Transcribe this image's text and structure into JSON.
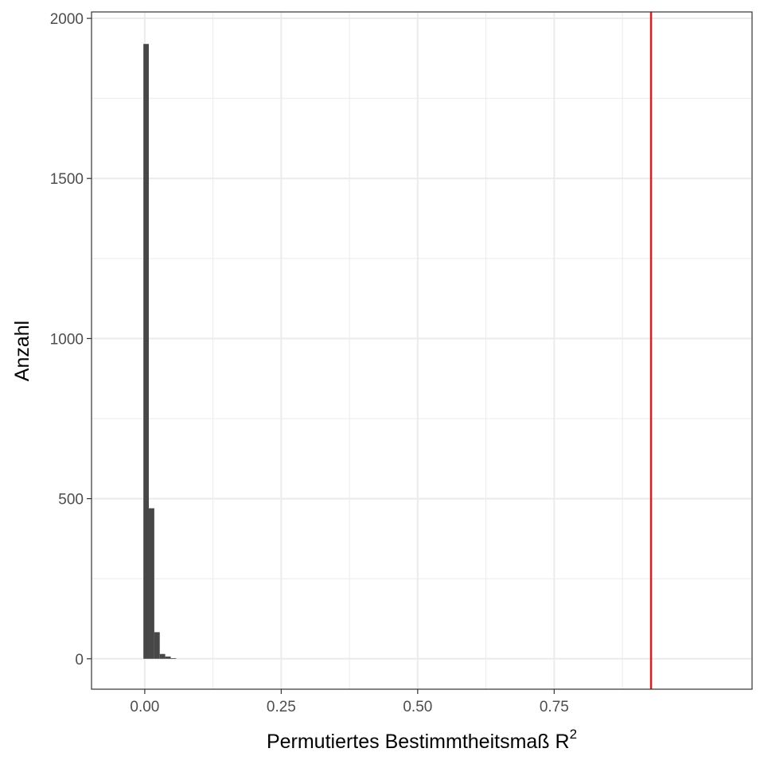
{
  "chart_data": {
    "type": "histogram",
    "xlabel": "Permutiertes Bestimmtheitsmaß R",
    "xlabel_superscript": "2",
    "ylabel": "Anzahl",
    "xlim": [
      -0.0975,
      1.1125
    ],
    "ylim": [
      -95,
      2020
    ],
    "x_ticks": [
      0.0,
      0.25,
      0.5,
      0.75
    ],
    "x_tick_labels": [
      "0.00",
      "0.25",
      "0.50",
      "0.75"
    ],
    "y_ticks": [
      0,
      500,
      1000,
      1500,
      2000
    ],
    "y_tick_labels": [
      "0",
      "500",
      "1000",
      "1500",
      "2000"
    ],
    "bins": [
      {
        "x0": -0.0025,
        "x1": 0.0075,
        "count": 1920
      },
      {
        "x0": 0.0075,
        "x1": 0.0175,
        "count": 470
      },
      {
        "x0": 0.0175,
        "x1": 0.0275,
        "count": 83
      },
      {
        "x0": 0.0275,
        "x1": 0.0375,
        "count": 15
      },
      {
        "x0": 0.0375,
        "x1": 0.0475,
        "count": 7
      },
      {
        "x0": 0.0475,
        "x1": 0.0575,
        "count": 2
      }
    ],
    "bar_color": "#474747",
    "reference_line": {
      "x": 0.9275,
      "color": "#e41a1c"
    },
    "grid": true,
    "grid_color": "#ebebeb",
    "panel_border_color": "#333333"
  }
}
